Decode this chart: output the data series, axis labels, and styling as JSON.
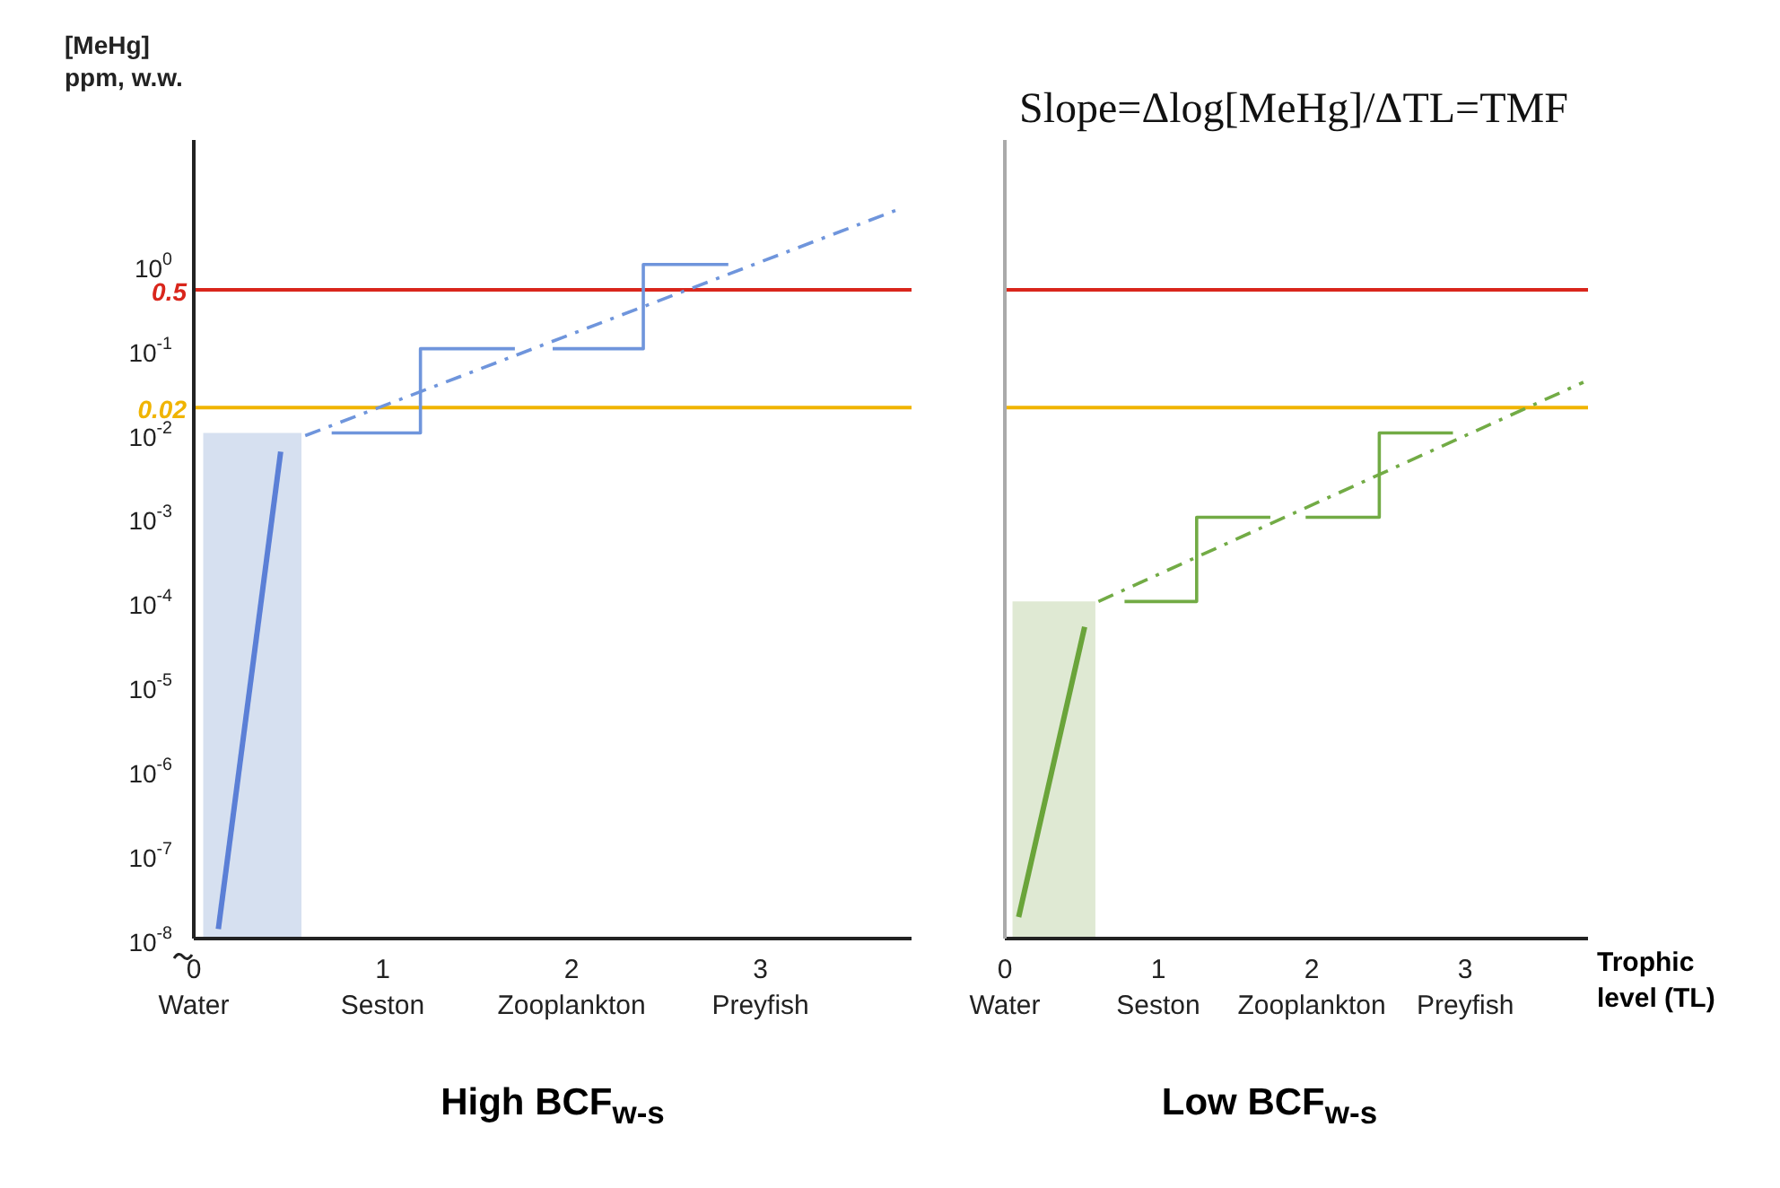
{
  "chart_data": [
    {
      "type": "line",
      "title": "High BCF$_{w-s}$",
      "ylabel": "[MeHg]\nppm, w.w.",
      "log": "y",
      "xlim": [
        0,
        3.8
      ],
      "xticks": [
        {
          "value": 0,
          "label": "0\nWater"
        },
        {
          "value": 1,
          "label": "1\nSeston"
        },
        {
          "value": 2,
          "label": "2\nZooplankton"
        },
        {
          "value": 3,
          "label": "3\nPreyfish"
        }
      ],
      "ylim": [
        1e-08,
        30
      ],
      "yticks": [
        {
          "value": 1,
          "label": "10$^{0}$"
        },
        {
          "value": 0.1,
          "label": "10$^{-1}$"
        },
        {
          "value": 0.01,
          "label": "10$^{-2}$"
        },
        {
          "value": 0.001,
          "label": "10$^{-3}$"
        },
        {
          "value": 0.0001,
          "label": "10$^{-4}$"
        },
        {
          "value": 1e-05,
          "label": "10$^{-5}$"
        },
        {
          "value": 1e-06,
          "label": "10$^{-6}$"
        },
        {
          "value": 1e-07,
          "label": "10$^{-7}$"
        },
        {
          "value": 1e-08,
          "label": "10$^{-8}$"
        }
      ],
      "series": [
        {
          "type": "area",
          "color": "#d6e0f0",
          "x": [
            0.05,
            0.57
          ],
          "values": [
            0.01,
            0.01
          ]
        },
        {
          "color": "#5b7fd6",
          "x": [
            0.13,
            0.46
          ],
          "values": [
            1.3e-08,
            0.006
          ]
        },
        {
          "color": "#6f95dc",
          "x": [
            0.73,
            1.2,
            1.2,
            1.7,
            1.75,
            1.9,
            2.38,
            2.38,
            2.83
          ],
          "values": [
            0.01,
            0.01,
            0.1,
            0.1,
            null,
            0.1,
            0.1,
            1,
            1
          ]
        },
        {
          "color": "#6f95dc",
          "line_style": "dashed",
          "x": [
            0.59,
            3.73
          ],
          "values": [
            0.0093,
            4.5
          ]
        }
      ],
      "ref_lines": [
        {
          "axis": "y",
          "value": 0.5,
          "label": "0.5",
          "color": "#d9261c"
        },
        {
          "axis": "y",
          "value": 0.02,
          "label": "0.02",
          "color": "#f0b400"
        }
      ],
      "grid": false,
      "legend": false
    },
    {
      "type": "line",
      "title": "Low BCF$_{w-s}$",
      "xlabel": "Trophic\nlevel (TL)",
      "annotations": [
        "Slope=Δlog[MeHg]/ΔTL=TMF"
      ],
      "log": "y",
      "tick_labels": "x",
      "xlim": [
        0,
        3.8
      ],
      "xticks": [
        {
          "value": 0,
          "label": "0\nWater"
        },
        {
          "value": 1,
          "label": "1\nSeston"
        },
        {
          "value": 2,
          "label": "2\nZooplankton"
        },
        {
          "value": 3,
          "label": "3\nPreyfish"
        }
      ],
      "ylim": [
        1e-08,
        30
      ],
      "series": [
        {
          "type": "area",
          "color": "#dfe9d3",
          "x": [
            0.05,
            0.59
          ],
          "values": [
            0.0001,
            0.0001
          ]
        },
        {
          "color": "#6aa43a",
          "x": [
            0.09,
            0.52
          ],
          "values": [
            1.8e-08,
            5e-05
          ]
        },
        {
          "color": "#72ab45",
          "x": [
            0.78,
            1.25,
            1.25,
            1.73,
            1.8,
            1.96,
            2.44,
            2.44,
            2.92
          ],
          "values": [
            0.0001,
            0.0001,
            0.001,
            0.001,
            null,
            0.001,
            0.001,
            0.01,
            0.01
          ]
        },
        {
          "color": "#72ab45",
          "line_style": "dashed",
          "x": [
            0.61,
            3.77
          ],
          "values": [
            0.0001,
            0.04
          ]
        }
      ],
      "ref_lines": [
        {
          "axis": "y",
          "value": 0.5,
          "color": "#d9261c"
        },
        {
          "axis": "y",
          "value": 0.02,
          "color": "#f0b400"
        }
      ],
      "grid": false,
      "legend": false
    }
  ]
}
